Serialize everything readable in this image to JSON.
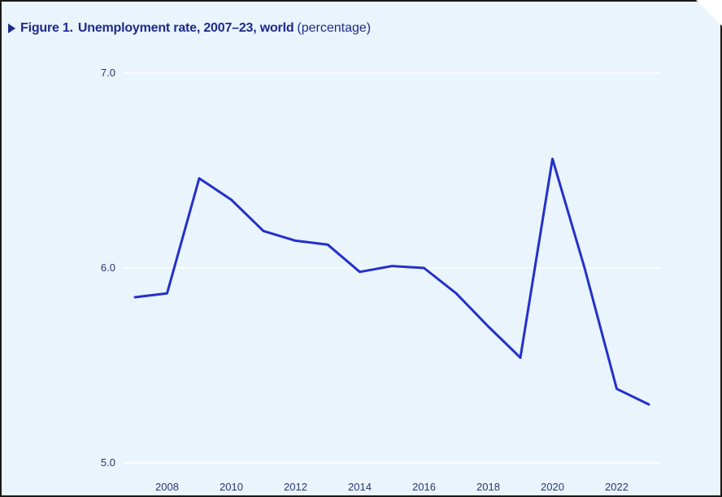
{
  "figure": {
    "label": "Figure 1.",
    "title_bold": "Unemployment rate, 2007–23, world",
    "title_unit": "(percentage)"
  },
  "colors": {
    "background": "#e9f4fd",
    "line": "#2430c8",
    "text": "#1f2a8a",
    "grid": "#ffffff"
  },
  "chart_data": {
    "type": "line",
    "title": "Unemployment rate, 2007–23, world (percentage)",
    "xlabel": "",
    "ylabel": "",
    "ylim": [
      5.0,
      7.0
    ],
    "xlim": [
      2007,
      2023
    ],
    "grid": "horizontal",
    "x_ticks": [
      2008,
      2010,
      2012,
      2014,
      2016,
      2018,
      2020,
      2022
    ],
    "x_tick_labels": [
      "2008",
      "2010",
      "2012",
      "2014",
      "2016",
      "2018",
      "2020",
      "2022"
    ],
    "y_ticks": [
      5.0,
      6.0,
      7.0
    ],
    "y_tick_labels": [
      "5.0",
      "6.0",
      "7.0"
    ],
    "series": [
      {
        "x": [
          2007,
          2008,
          2009,
          2010,
          2011,
          2012,
          2013,
          2014,
          2015,
          2016,
          2017,
          2018,
          2019,
          2020,
          2021,
          2022,
          2023
        ],
        "values": [
          5.85,
          5.87,
          6.46,
          6.35,
          6.19,
          6.14,
          6.12,
          5.98,
          6.01,
          6.0,
          5.87,
          5.7,
          5.54,
          6.56,
          6.0,
          5.38,
          5.3
        ]
      }
    ]
  }
}
